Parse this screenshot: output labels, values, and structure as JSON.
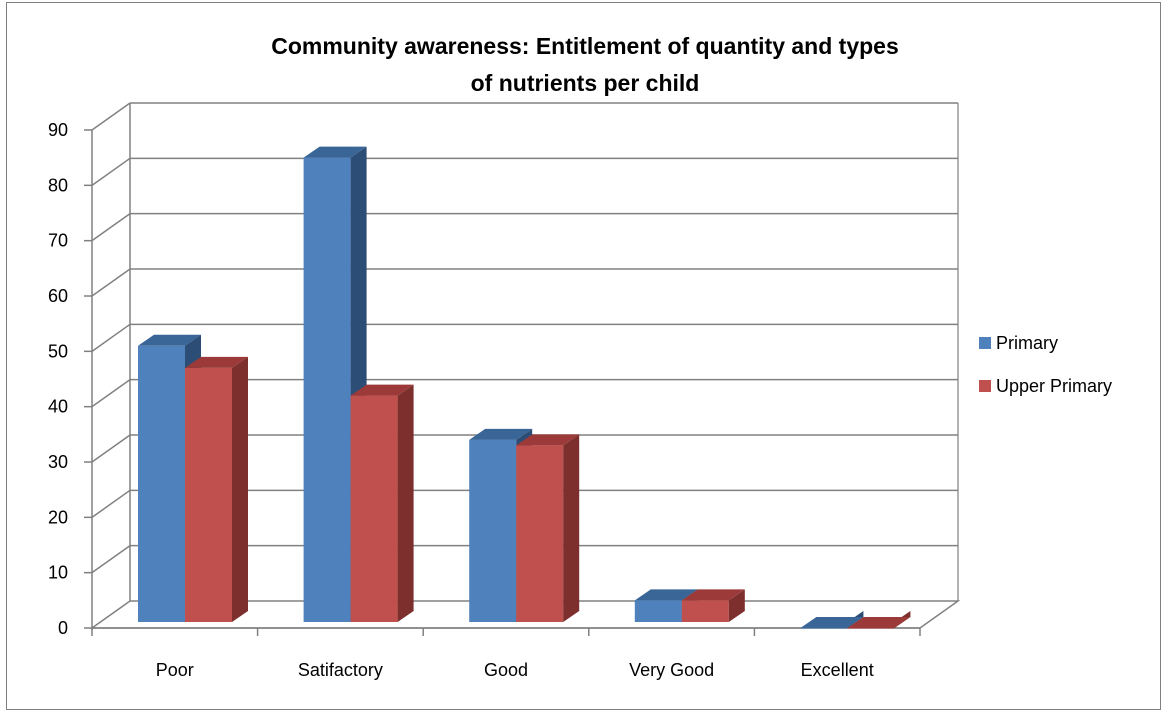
{
  "chart_data": {
    "type": "bar",
    "title_lines": [
      "Community awareness: Entitlement of quantity and types",
      "of nutrients per child"
    ],
    "categories": [
      "Poor",
      "Satifactory",
      "Good",
      "Very Good",
      "Excellent"
    ],
    "series": [
      {
        "name": "Primary",
        "values": [
          51,
          85,
          34,
          5,
          0
        ],
        "color": "#4F81BD",
        "side_color": "#2C4D75",
        "top_color": "#3A6597"
      },
      {
        "name": "Upper Primary",
        "values": [
          47,
          42,
          33,
          5,
          0
        ],
        "color": "#C0504D",
        "side_color": "#7D2F2D",
        "top_color": "#9B3A38"
      }
    ],
    "ylim": [
      0,
      90
    ],
    "yticks": [
      "0",
      "10",
      "20",
      "30",
      "40",
      "50",
      "60",
      "70",
      "80",
      "90"
    ],
    "grid": true,
    "legend_position": "right",
    "style": "3d-clustered-column"
  }
}
